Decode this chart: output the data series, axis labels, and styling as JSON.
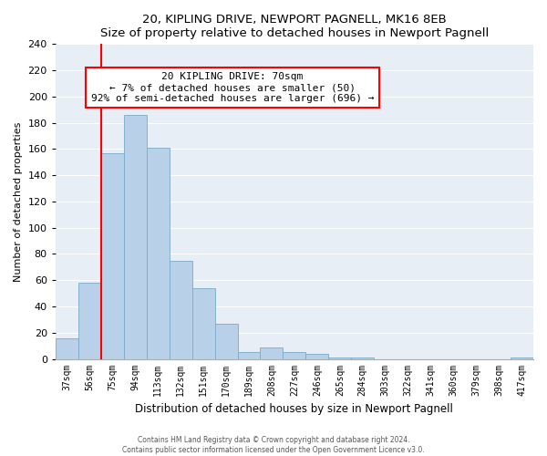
{
  "title": "20, KIPLING DRIVE, NEWPORT PAGNELL, MK16 8EB",
  "subtitle": "Size of property relative to detached houses in Newport Pagnell",
  "xlabel": "Distribution of detached houses by size in Newport Pagnell",
  "ylabel": "Number of detached properties",
  "bar_color": "#b8d0e8",
  "bar_edge_color": "#7aaac8",
  "background_color": "#e8eef5",
  "grid_color": "#ffffff",
  "tick_labels": [
    "37sqm",
    "56sqm",
    "75sqm",
    "94sqm",
    "113sqm",
    "132sqm",
    "151sqm",
    "170sqm",
    "189sqm",
    "208sqm",
    "227sqm",
    "246sqm",
    "265sqm",
    "284sqm",
    "303sqm",
    "322sqm",
    "341sqm",
    "360sqm",
    "379sqm",
    "398sqm",
    "417sqm"
  ],
  "bar_values": [
    16,
    58,
    157,
    186,
    161,
    75,
    54,
    27,
    5,
    9,
    5,
    4,
    1,
    1,
    0,
    0,
    0,
    0,
    0,
    0,
    1
  ],
  "ylim": [
    0,
    240
  ],
  "yticks": [
    0,
    20,
    40,
    60,
    80,
    100,
    120,
    140,
    160,
    180,
    200,
    220,
    240
  ],
  "annotation_title": "20 KIPLING DRIVE: 70sqm",
  "annotation_line1": "← 7% of detached houses are smaller (50)",
  "annotation_line2": "92% of semi-detached houses are larger (696) →",
  "red_line_bar_index": 2,
  "footer1": "Contains HM Land Registry data © Crown copyright and database right 2024.",
  "footer2": "Contains public sector information licensed under the Open Government Licence v3.0."
}
